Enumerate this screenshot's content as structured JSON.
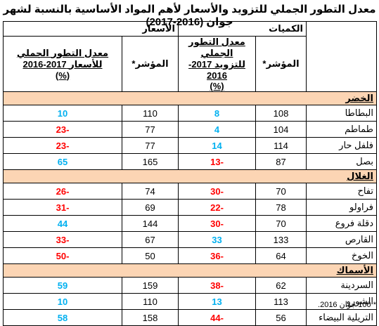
{
  "title": "معدل التطور الجملي للتزويد والأسعار لأهم المواد الأساسية بالنسبة لشهر جوان (2016-2017)",
  "headers": {
    "quantities": "الكميات",
    "prices": "الأسعار",
    "index": "المؤشر*",
    "qty_rate_line1": "معدل التطور الجملي",
    "qty_rate_line2": "للتزويد 2017-2016",
    "price_rate_line1": "معدل التطور الجملي",
    "price_rate_line2": "للأسعار 2017-2016",
    "pct": "(%)"
  },
  "categories": [
    {
      "name": "الخضر",
      "items": [
        {
          "name": "البطاطا",
          "qty_index": "108",
          "qty_rate": "8",
          "price_index": "110",
          "price_rate": "10"
        },
        {
          "name": "طماطم",
          "qty_index": "104",
          "qty_rate": "4",
          "price_index": "77",
          "price_rate": "-23"
        },
        {
          "name": "فلفل حار",
          "qty_index": "114",
          "qty_rate": "14",
          "price_index": "77",
          "price_rate": "-23"
        },
        {
          "name": "بصل",
          "qty_index": "87",
          "qty_rate": "-13",
          "price_index": "165",
          "price_rate": "65"
        }
      ]
    },
    {
      "name": "الغلال",
      "items": [
        {
          "name": "تفاح",
          "qty_index": "70",
          "qty_rate": "-30",
          "price_index": "74",
          "price_rate": "-26"
        },
        {
          "name": "فراولو",
          "qty_index": "78",
          "qty_rate": "-22",
          "price_index": "69",
          "price_rate": "-31"
        },
        {
          "name": "دقلة فروع",
          "qty_index": "70",
          "qty_rate": "-30",
          "price_index": "144",
          "price_rate": "44"
        },
        {
          "name": "القارص",
          "qty_index": "133",
          "qty_rate": "33",
          "price_index": "67",
          "price_rate": "-33"
        },
        {
          "name": "الخوخ",
          "qty_index": "64",
          "qty_rate": "-36",
          "price_index": "50",
          "price_rate": "-50"
        }
      ]
    },
    {
      "name": "الأسماك",
      "items": [
        {
          "name": "السردينة",
          "qty_index": "62",
          "qty_rate": "-38",
          "price_index": "159",
          "price_rate": "59"
        },
        {
          "name": "الشورو",
          "qty_index": "113",
          "qty_rate": "13",
          "price_index": "110",
          "price_rate": "10"
        },
        {
          "name": "التريلية البيضاء",
          "qty_index": "56",
          "qty_rate": "-44",
          "price_index": "158",
          "price_rate": "58"
        }
      ]
    }
  ],
  "footnote": "* 100 جوان 2016.",
  "colors": {
    "positive": "#00b0f0",
    "negative": "#ff0000",
    "category_bg": "#fcd5b4"
  }
}
